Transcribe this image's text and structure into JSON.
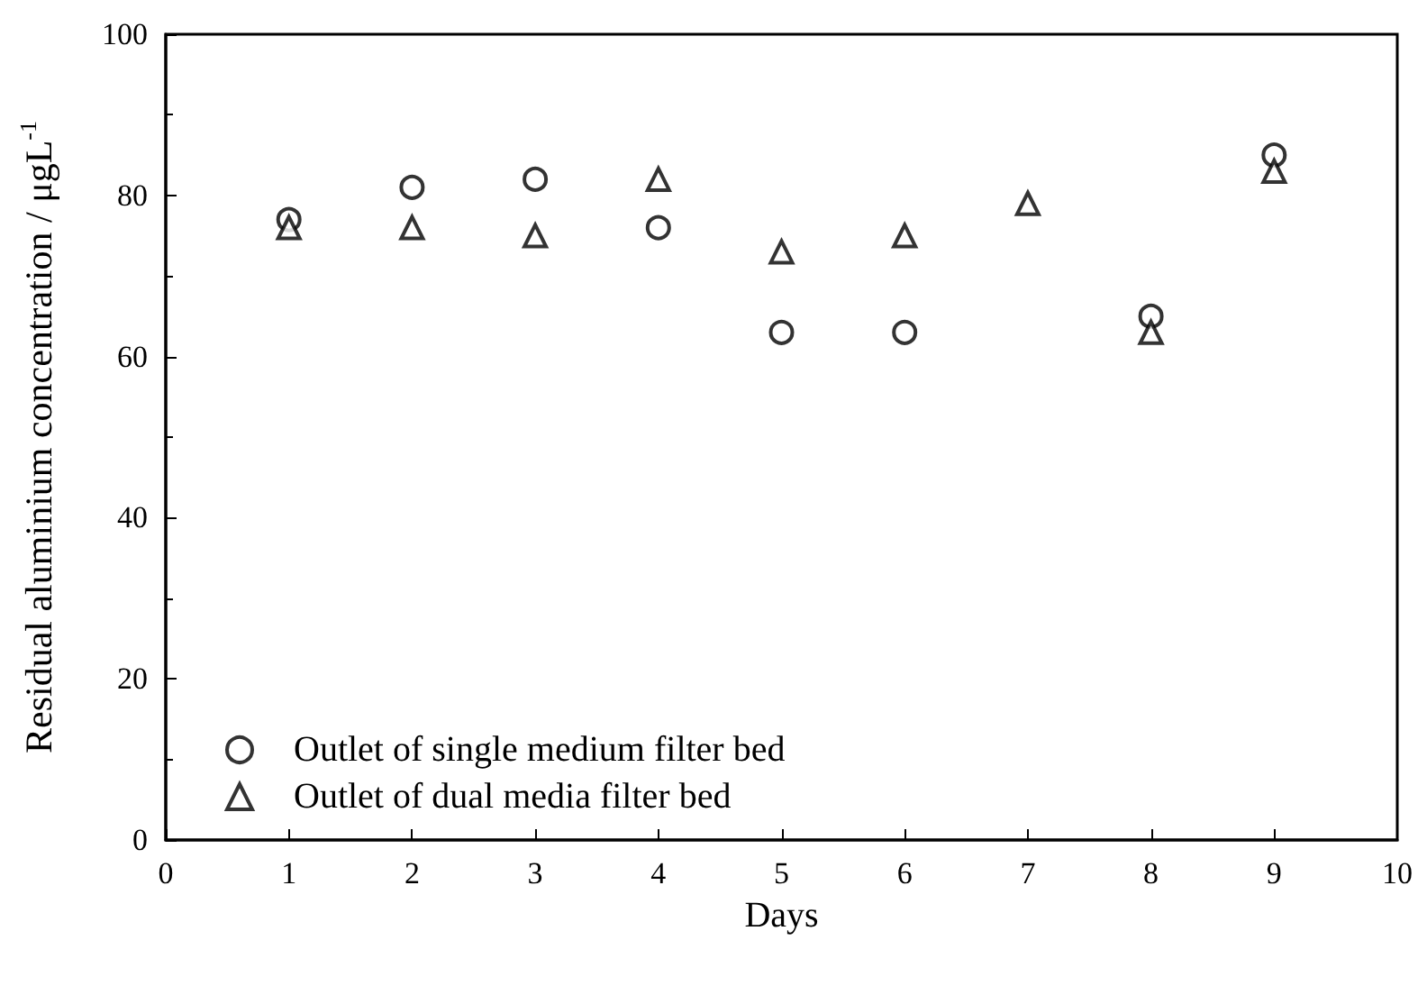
{
  "chart_data": {
    "type": "scatter",
    "xlabel": "Days",
    "ylabel": "Residual aluminium concentration / μgL$^{-1}$",
    "xlim": [
      0,
      10
    ],
    "xticks": [
      0,
      1,
      2,
      3,
      4,
      5,
      6,
      7,
      8,
      9,
      10
    ],
    "ylim": [
      0,
      100
    ],
    "yticks": [
      0,
      20,
      40,
      60,
      80,
      100
    ],
    "legend": "bottom left",
    "grid": false,
    "series": [
      {
        "name": "Outlet of single medium filter bed",
        "color": "#000000",
        "marker": "circle",
        "x": [
          1,
          2,
          3,
          4,
          5,
          6,
          8,
          9
        ],
        "values": [
          77,
          81,
          82,
          76,
          63,
          63,
          65,
          85
        ]
      },
      {
        "name": "Outlet of dual media filter bed",
        "color": "#000000",
        "marker": "triangle",
        "x": [
          1,
          2,
          3,
          4,
          5,
          6,
          7,
          8,
          9
        ],
        "values": [
          76,
          76,
          75,
          82,
          73,
          75,
          79,
          63,
          83
        ]
      }
    ]
  }
}
